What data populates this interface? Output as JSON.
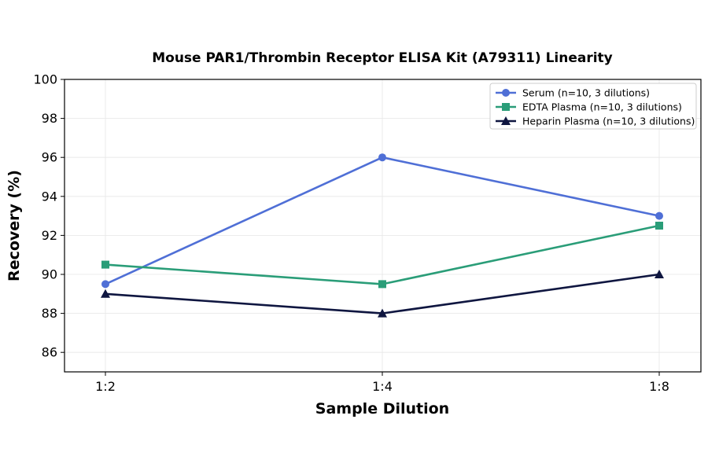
{
  "chart_data": {
    "type": "line",
    "title": "Mouse PAR1/Thrombin Receptor ELISA Kit (A79311) Linearity",
    "xlabel": "Sample Dilution",
    "ylabel": "Recovery (%)",
    "categories": [
      "1:2",
      "1:4",
      "1:8"
    ],
    "ylim": [
      85,
      100
    ],
    "yticks": [
      86,
      88,
      90,
      92,
      94,
      96,
      98,
      100
    ],
    "grid": true,
    "legend_position": "top-right",
    "series": [
      {
        "name": "Serum (n=10, 3 dilutions)",
        "values": [
          89.5,
          96.0,
          93.0
        ],
        "color": "#4f6fd6",
        "marker": "circle"
      },
      {
        "name": "EDTA Plasma (n=10, 3 dilutions)",
        "values": [
          90.5,
          89.5,
          92.5
        ],
        "color": "#2a9d78",
        "marker": "square"
      },
      {
        "name": "Heparin Plasma (n=10, 3 dilutions)",
        "values": [
          89.0,
          88.0,
          90.0
        ],
        "color": "#0f1640",
        "marker": "triangle"
      }
    ]
  }
}
